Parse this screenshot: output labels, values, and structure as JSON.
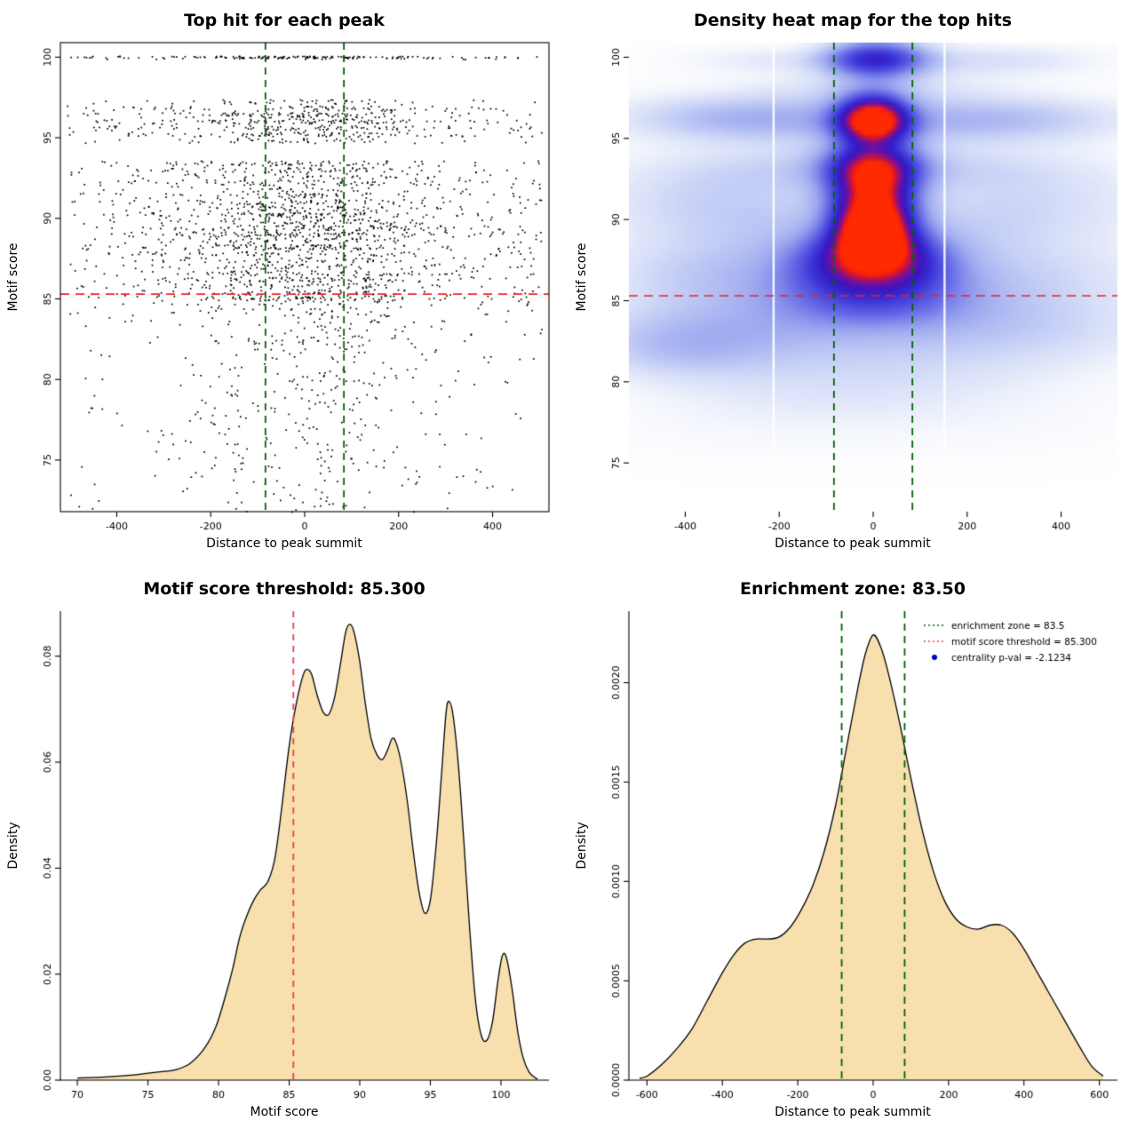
{
  "page": {
    "background": "#ffffff"
  },
  "colors": {
    "threshold_red": "#ee2222",
    "threshold_pink": "#e8414e",
    "zone_green": "#006400",
    "area_fill": "#f7dfae",
    "area_stroke": "#000000",
    "legend_blue": "#0000cd",
    "point_black": "#000000"
  },
  "chart_data": [
    {
      "id": "scatter-top-hits",
      "type": "scatter",
      "title": "Top hit for each peak",
      "xlabel": "Distance to peak summit",
      "ylabel": "Motif score",
      "xlim": [
        -520,
        520
      ],
      "ylim": [
        71.8,
        100.9
      ],
      "xticks": [
        -400,
        -200,
        0,
        200,
        400
      ],
      "xtick_labels": [
        "-400",
        "-200",
        "0",
        "200",
        "400"
      ],
      "yticks": [
        75,
        80,
        85,
        90,
        95,
        100
      ],
      "ytick_labels": [
        "75",
        "80",
        "85",
        "90",
        "95",
        "100"
      ],
      "box": "box",
      "point_color": "#000000",
      "n_points": 3000,
      "seed": 1234567,
      "x_dist": {
        "center_frac": 0.6,
        "center_sd": 135,
        "uniform_range": [
          -505,
          505
        ]
      },
      "score_bands": [
        [
          100,
          5
        ],
        [
          99.9,
          2
        ],
        [
          97.2,
          2
        ],
        [
          96.8,
          3
        ],
        [
          96.4,
          4
        ],
        [
          96,
          4
        ],
        [
          95.6,
          3
        ],
        [
          95.2,
          3
        ],
        [
          94.8,
          2
        ],
        [
          93.4,
          3
        ],
        [
          93,
          3
        ],
        [
          92.6,
          2
        ],
        [
          92.2,
          3
        ],
        [
          91.8,
          2
        ],
        [
          91.4,
          3
        ],
        [
          91,
          3
        ],
        [
          90.6,
          3
        ],
        [
          90.2,
          4
        ],
        [
          89.8,
          3
        ],
        [
          89.4,
          4
        ],
        [
          89,
          4
        ],
        [
          88.6,
          3
        ],
        [
          88.2,
          4
        ],
        [
          87.8,
          3
        ],
        [
          87.4,
          3
        ],
        [
          87,
          3
        ],
        [
          86.6,
          3
        ],
        [
          86.2,
          3
        ],
        [
          85.8,
          2
        ],
        [
          85.4,
          2
        ],
        [
          85,
          2
        ]
      ],
      "low_tail": {
        "min": 71.8,
        "max": 85.2,
        "span": 13.5,
        "power": 1.6,
        "weight": 20
      },
      "hline": {
        "y": 85.3,
        "color": "#ee2222",
        "dash": [
          10,
          7
        ],
        "width": 1.8
      },
      "vlines": {
        "xs": [
          -83.5,
          83.5
        ],
        "color": "#006400",
        "dash": [
          8,
          6
        ],
        "width": 1.8
      }
    },
    {
      "id": "density-heatmap",
      "type": "heatmap",
      "title": "Density heat map for the top hits",
      "xlabel": "Distance to peak summit",
      "ylabel": "Motif score",
      "xlim": [
        -520,
        520
      ],
      "ylim": [
        72.0,
        100.9
      ],
      "xticks": [
        -400,
        -200,
        0,
        200,
        400
      ],
      "xtick_labels": [
        "-400",
        "-200",
        "0",
        "200",
        "400"
      ],
      "yticks": [
        75,
        80,
        85,
        90,
        95,
        100
      ],
      "ytick_labels": [
        "75",
        "80",
        "85",
        "90",
        "95",
        "100"
      ],
      "box": "none",
      "blobs": [
        [
          0,
          96.1,
          52,
          1.05,
          1.0
        ],
        [
          0,
          89.4,
          55,
          1.15,
          0.98
        ],
        [
          0,
          91.7,
          62,
          1.3,
          0.75
        ],
        [
          0,
          93.4,
          70,
          0.95,
          0.5
        ],
        [
          5,
          99.9,
          75,
          0.85,
          0.6
        ],
        [
          250,
          99.8,
          170,
          0.7,
          0.14
        ],
        [
          -220,
          99.8,
          140,
          0.6,
          0.1
        ],
        [
          0,
          98.1,
          180,
          0.7,
          0.1
        ],
        [
          0,
          88.0,
          95,
          1.0,
          0.5
        ],
        [
          0,
          86.8,
          110,
          1.0,
          0.42
        ],
        [
          0,
          85.2,
          140,
          1.2,
          0.33
        ],
        [
          0,
          96.1,
          270,
          1.1,
          0.22
        ],
        [
          -330,
          96.3,
          170,
          1.05,
          0.16
        ],
        [
          330,
          96.2,
          180,
          1.05,
          0.13
        ],
        [
          0,
          93.2,
          290,
          1.0,
          0.16
        ],
        [
          -340,
          91.3,
          190,
          1.6,
          0.15
        ],
        [
          345,
          91.3,
          195,
          1.6,
          0.12
        ],
        [
          0,
          89.0,
          310,
          1.6,
          0.17
        ],
        [
          -320,
          86.6,
          195,
          1.5,
          0.17
        ],
        [
          320,
          86.4,
          205,
          1.5,
          0.13
        ],
        [
          -360,
          83.2,
          205,
          1.6,
          0.15
        ],
        [
          0,
          83.6,
          265,
          1.6,
          0.14
        ],
        [
          360,
          83.4,
          225,
          1.6,
          0.11
        ],
        [
          -425,
          81.8,
          145,
          1.3,
          0.11
        ],
        [
          90,
          80.8,
          300,
          1.6,
          0.08
        ],
        [
          -120,
          79.6,
          260,
          1.5,
          0.06
        ],
        [
          200,
          77.5,
          250,
          1.5,
          0.04
        ],
        [
          -300,
          77.5,
          200,
          1.5,
          0.035
        ]
      ],
      "colormap": [
        [
          0,
          "#ffffff"
        ],
        [
          0.05,
          "#f6f8fd"
        ],
        [
          0.15,
          "#d6def8"
        ],
        [
          0.3,
          "#9fabf0"
        ],
        [
          0.45,
          "#6468e6"
        ],
        [
          0.6,
          "#3c34d8"
        ],
        [
          0.72,
          "#3418c0"
        ],
        [
          0.82,
          "#6c10a8"
        ],
        [
          0.9,
          "#b8124e"
        ],
        [
          0.96,
          "#f01818"
        ],
        [
          1,
          "#ff2a00"
        ]
      ],
      "white_lines_x": [
        -212,
        152
      ],
      "hline": {
        "y": 85.3,
        "color": "#ee2222",
        "dash": [
          10,
          7
        ],
        "width": 1.6
      },
      "vlines": {
        "xs": [
          -83.5,
          83.5
        ],
        "color": "#006400",
        "dash": [
          8,
          6
        ],
        "width": 1.8
      }
    },
    {
      "id": "motif-score-density",
      "type": "area",
      "title": "Motif score threshold: 85.300",
      "xlabel": "Motif score",
      "ylabel": "Density",
      "xlim": [
        68.8,
        103.4
      ],
      "ylim": [
        0,
        0.0885
      ],
      "xticks": [
        70,
        75,
        80,
        85,
        90,
        95,
        100
      ],
      "xtick_labels": [
        "70",
        "75",
        "80",
        "85",
        "90",
        "95",
        "100"
      ],
      "yticks": [
        0,
        0.02,
        0.04,
        0.06,
        0.08
      ],
      "ytick_labels": [
        "0.00",
        "0.02",
        "0.04",
        "0.06",
        "0.08"
      ],
      "box": "l",
      "fill": "#f7dfae",
      "stroke": "#000000",
      "points": [
        [
          70,
          0.0004
        ],
        [
          72,
          0.0006
        ],
        [
          74,
          0.001
        ],
        [
          76,
          0.0016
        ],
        [
          77,
          0.002
        ],
        [
          78,
          0.0032
        ],
        [
          79,
          0.006
        ],
        [
          79.8,
          0.01
        ],
        [
          80.5,
          0.016
        ],
        [
          81,
          0.021
        ],
        [
          81.5,
          0.027
        ],
        [
          82,
          0.031
        ],
        [
          82.5,
          0.034
        ],
        [
          83,
          0.036
        ],
        [
          83.5,
          0.0375
        ],
        [
          84,
          0.042
        ],
        [
          84.5,
          0.052
        ],
        [
          85,
          0.063
        ],
        [
          85.5,
          0.071
        ],
        [
          86,
          0.0765
        ],
        [
          86.3,
          0.0775
        ],
        [
          86.6,
          0.0765
        ],
        [
          87,
          0.0725
        ],
        [
          87.4,
          0.0695
        ],
        [
          87.8,
          0.069
        ],
        [
          88.2,
          0.072
        ],
        [
          88.6,
          0.078
        ],
        [
          89,
          0.0845
        ],
        [
          89.3,
          0.086
        ],
        [
          89.6,
          0.0845
        ],
        [
          90,
          0.079
        ],
        [
          90.4,
          0.071
        ],
        [
          90.8,
          0.0645
        ],
        [
          91.2,
          0.0615
        ],
        [
          91.6,
          0.0605
        ],
        [
          92,
          0.0625
        ],
        [
          92.3,
          0.0645
        ],
        [
          92.6,
          0.0635
        ],
        [
          93,
          0.059
        ],
        [
          93.4,
          0.052
        ],
        [
          93.8,
          0.043
        ],
        [
          94.2,
          0.0355
        ],
        [
          94.6,
          0.0315
        ],
        [
          95,
          0.034
        ],
        [
          95.4,
          0.044
        ],
        [
          95.8,
          0.058
        ],
        [
          96.1,
          0.069
        ],
        [
          96.3,
          0.0715
        ],
        [
          96.6,
          0.069
        ],
        [
          97,
          0.059
        ],
        [
          97.4,
          0.044
        ],
        [
          97.8,
          0.028
        ],
        [
          98.2,
          0.015
        ],
        [
          98.6,
          0.0085
        ],
        [
          99,
          0.0075
        ],
        [
          99.4,
          0.011
        ],
        [
          99.8,
          0.019
        ],
        [
          100.1,
          0.0235
        ],
        [
          100.4,
          0.023
        ],
        [
          100.8,
          0.017
        ],
        [
          101.2,
          0.009
        ],
        [
          101.6,
          0.004
        ],
        [
          102,
          0.0015
        ],
        [
          102.4,
          0.0005
        ],
        [
          102.6,
          0.0002
        ]
      ],
      "vlines": {
        "xs": [
          85.3
        ],
        "color": "#e8414e",
        "dash": [
          7,
          6
        ],
        "width": 1.8
      }
    },
    {
      "id": "distance-density",
      "type": "area",
      "title": "Enrichment zone: 83.50",
      "xlabel": "Distance to peak summit",
      "ylabel": "Density",
      "xlim": [
        -648,
        648
      ],
      "ylim": [
        0,
        0.00236
      ],
      "xticks": [
        -600,
        -400,
        -200,
        0,
        200,
        400,
        600
      ],
      "xtick_labels": [
        "-600",
        "-400",
        "-200",
        "0",
        "200",
        "400",
        "600"
      ],
      "yticks": [
        0,
        0.0005,
        0.001,
        0.0015,
        0.002
      ],
      "ytick_labels": [
        "0.0000",
        "0.0005",
        "0.0010",
        "0.0015",
        "0.0020"
      ],
      "box": "l",
      "fill": "#f7dfae",
      "stroke": "#000000",
      "points": [
        [
          -620,
          1e-05
        ],
        [
          -600,
          2e-05
        ],
        [
          -560,
          8e-05
        ],
        [
          -520,
          0.00016
        ],
        [
          -480,
          0.00026
        ],
        [
          -440,
          0.0004
        ],
        [
          -400,
          0.00054
        ],
        [
          -370,
          0.00063
        ],
        [
          -340,
          0.00069
        ],
        [
          -310,
          0.00071
        ],
        [
          -280,
          0.00071
        ],
        [
          -250,
          0.00072
        ],
        [
          -220,
          0.00077
        ],
        [
          -190,
          0.00086
        ],
        [
          -160,
          0.00098
        ],
        [
          -130,
          0.00115
        ],
        [
          -100,
          0.00138
        ],
        [
          -70,
          0.00168
        ],
        [
          -40,
          0.00198
        ],
        [
          -20,
          0.00215
        ],
        [
          0,
          0.00224
        ],
        [
          20,
          0.00218
        ],
        [
          40,
          0.00205
        ],
        [
          70,
          0.0018
        ],
        [
          100,
          0.00152
        ],
        [
          130,
          0.00126
        ],
        [
          160,
          0.00105
        ],
        [
          190,
          0.0009
        ],
        [
          220,
          0.00081
        ],
        [
          250,
          0.00077
        ],
        [
          280,
          0.00076
        ],
        [
          310,
          0.00078
        ],
        [
          340,
          0.00078
        ],
        [
          370,
          0.00074
        ],
        [
          400,
          0.00066
        ],
        [
          430,
          0.00056
        ],
        [
          460,
          0.00046
        ],
        [
          490,
          0.00036
        ],
        [
          520,
          0.00026
        ],
        [
          550,
          0.00016
        ],
        [
          580,
          7e-05
        ],
        [
          610,
          2e-05
        ]
      ],
      "vlines": {
        "xs": [
          -83.5,
          83.5
        ],
        "color": "#006400",
        "dash": [
          8,
          6
        ],
        "width": 1.8
      },
      "legend": {
        "items": [
          {
            "label": "enrichment zone = 83.5",
            "color": "#006400",
            "marker": "dotted-line"
          },
          {
            "label": "motif score threshold = 85.300",
            "color": "#e8414e",
            "marker": "dotted-line"
          },
          {
            "label": "centrality p-val = -2.1234",
            "color": "#0000cd",
            "marker": "dot"
          }
        ]
      }
    }
  ]
}
